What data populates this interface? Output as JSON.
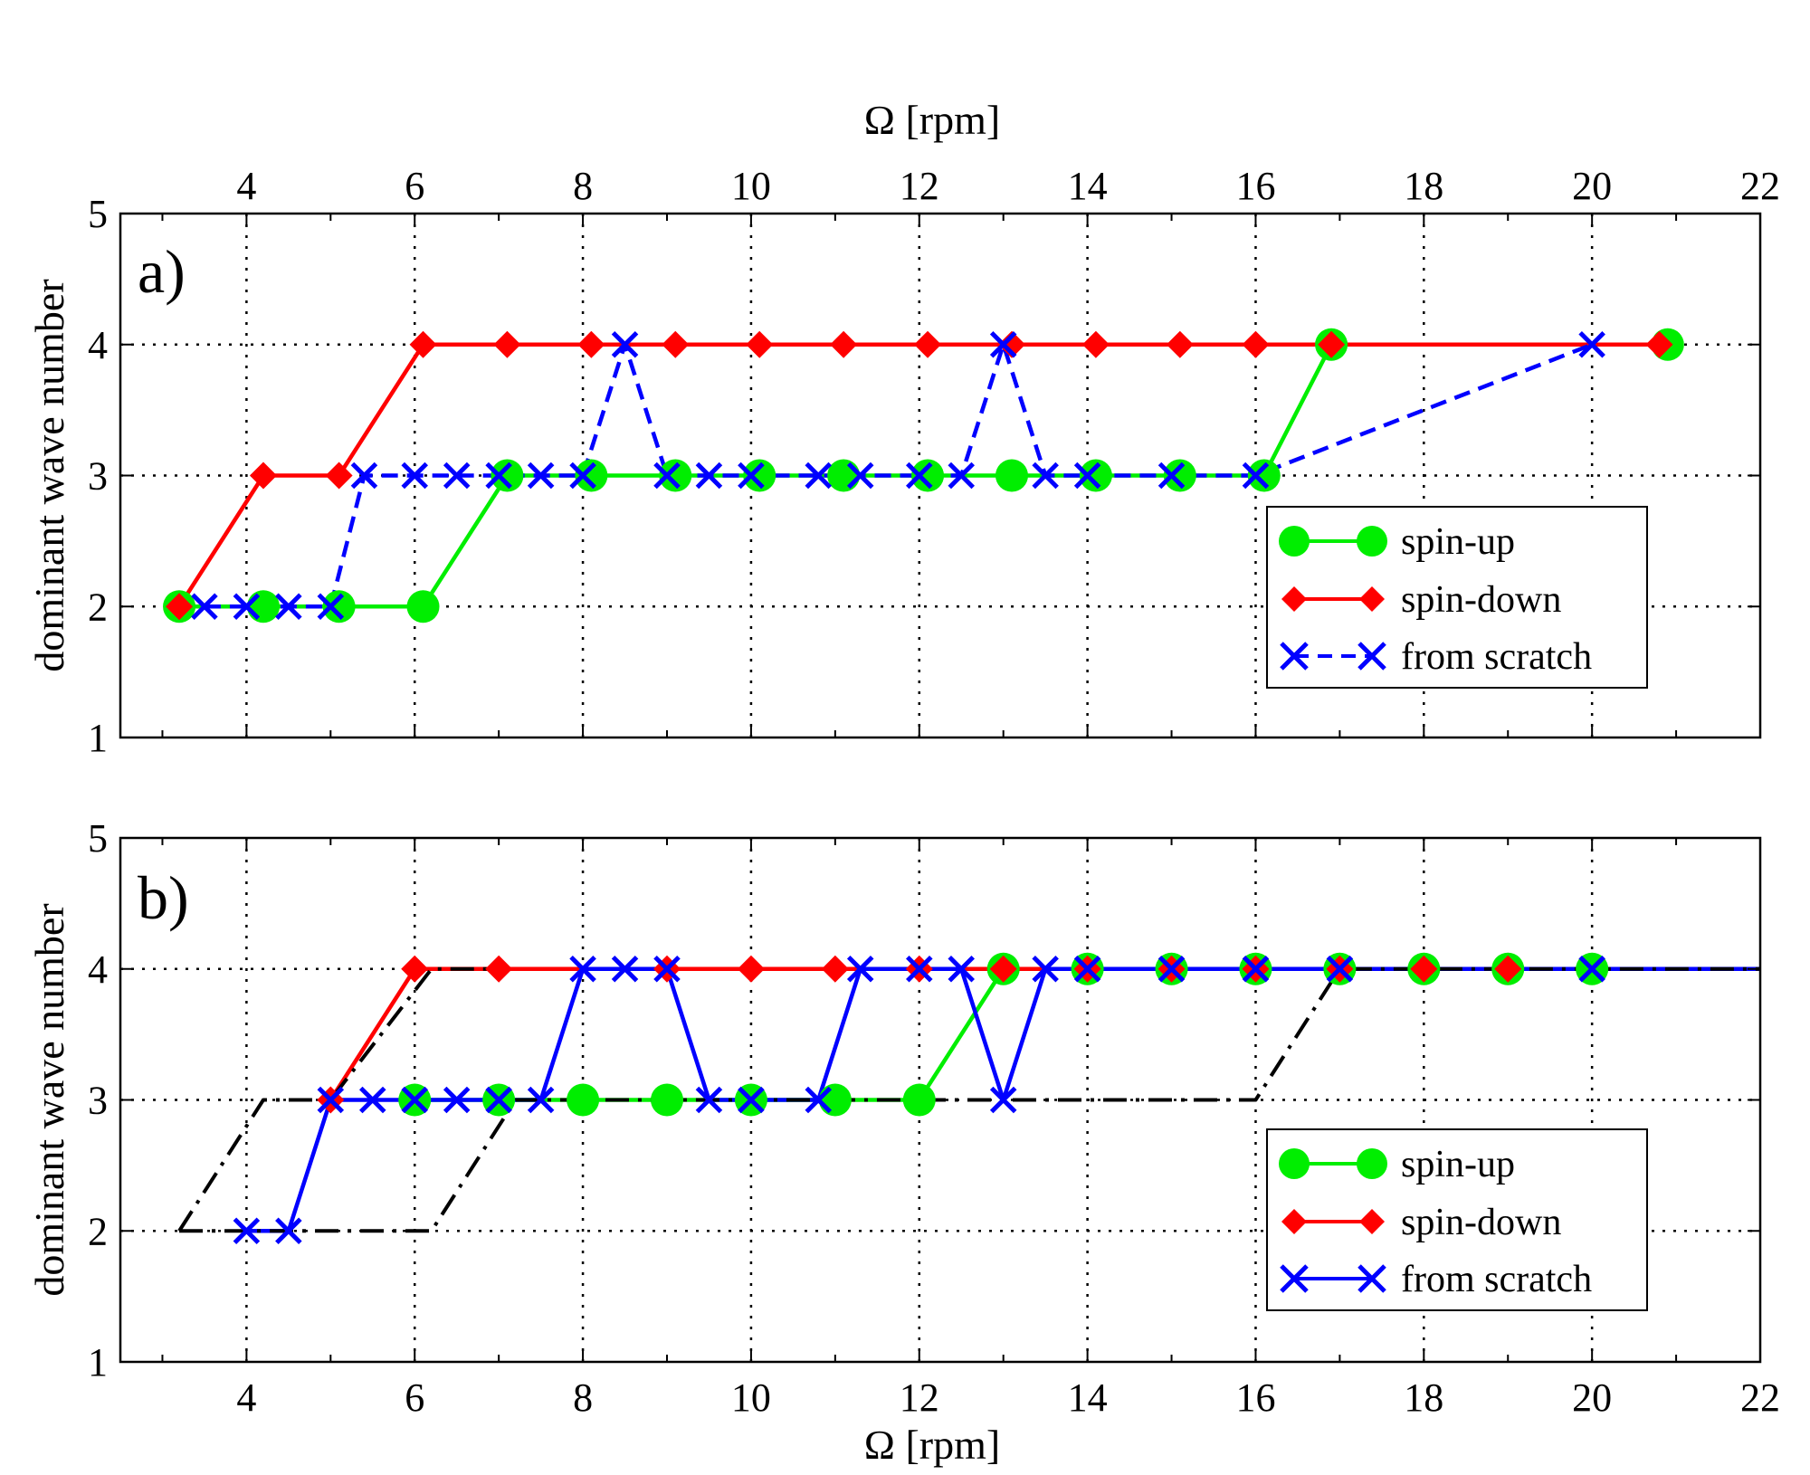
{
  "chart_data": [
    {
      "panel": "a)",
      "type": "line",
      "xlabel_top": "Ω [rpm]",
      "xlabel": "",
      "ylabel": "dominant wave number",
      "xlim": [
        2.5,
        22
      ],
      "ylim": [
        1,
        5
      ],
      "xticks": [
        4,
        6,
        8,
        10,
        12,
        14,
        16,
        18,
        20,
        22
      ],
      "yticks": [
        1,
        2,
        3,
        4,
        5
      ],
      "grid": true,
      "legend_position": "lower-right",
      "series": [
        {
          "name": "spin-up",
          "color": "#00ee00",
          "marker": "circle",
          "linestyle": "solid",
          "x": [
            3.2,
            4.2,
            5.1,
            6.1,
            7.1,
            8.1,
            9.1,
            10.1,
            11.1,
            12.1,
            13.1,
            14.1,
            15.1,
            16.1,
            16.9,
            20.9
          ],
          "y": [
            2,
            2,
            2,
            2,
            3,
            3,
            3,
            3,
            3,
            3,
            3,
            3,
            3,
            3,
            4,
            4
          ]
        },
        {
          "name": "spin-down",
          "color": "#ff0000",
          "marker": "diamond",
          "linestyle": "solid",
          "x": [
            3.2,
            4.2,
            5.1,
            6.1,
            7.1,
            8.1,
            9.1,
            10.1,
            11.1,
            12.1,
            13.1,
            14.1,
            15.1,
            16.0,
            16.9,
            20.8
          ],
          "y": [
            2,
            3,
            3,
            4,
            4,
            4,
            4,
            4,
            4,
            4,
            4,
            4,
            4,
            4,
            4,
            4
          ]
        },
        {
          "name": "from scratch",
          "color": "#0000ff",
          "marker": "x",
          "linestyle": "dashed",
          "x": [
            3.5,
            4.0,
            4.5,
            5.0,
            5.4,
            6.0,
            6.5,
            7.0,
            7.5,
            8.0,
            8.5,
            9.0,
            9.5,
            10.0,
            10.8,
            11.3,
            12.0,
            12.5,
            13.0,
            13.5,
            14.0,
            15.0,
            16.0,
            20.0
          ],
          "y": [
            2,
            2,
            2,
            2,
            3,
            3,
            3,
            3,
            3,
            3,
            4,
            3,
            3,
            3,
            3,
            3,
            3,
            3,
            4,
            3,
            3,
            3,
            3,
            4
          ]
        }
      ]
    },
    {
      "panel": "b)",
      "type": "line",
      "xlabel": "Ω [rpm]",
      "ylabel": "dominant wave number",
      "xlim": [
        2.5,
        22
      ],
      "ylim": [
        1,
        5
      ],
      "xticks": [
        4,
        6,
        8,
        10,
        12,
        14,
        16,
        18,
        20,
        22
      ],
      "yticks": [
        1,
        2,
        3,
        4,
        5
      ],
      "grid": true,
      "legend_position": "lower-right",
      "series": [
        {
          "name": "spin-up",
          "color": "#00ee00",
          "marker": "circle",
          "linestyle": "solid",
          "x": [
            6,
            7,
            8,
            9,
            10,
            11,
            12,
            13,
            14,
            15,
            16,
            17,
            18,
            19,
            20
          ],
          "y": [
            3,
            3,
            3,
            3,
            3,
            3,
            3,
            4,
            4,
            4,
            4,
            4,
            4,
            4,
            4
          ]
        },
        {
          "name": "spin-down",
          "color": "#ff0000",
          "marker": "diamond",
          "linestyle": "solid",
          "x": [
            5,
            6,
            7,
            9,
            10,
            11,
            12,
            13,
            14,
            15,
            16,
            17,
            18,
            19
          ],
          "y": [
            3,
            4,
            4,
            4,
            4,
            4,
            4,
            4,
            4,
            4,
            4,
            4,
            4,
            4
          ]
        },
        {
          "name": "from scratch",
          "color": "#0000ff",
          "marker": "x",
          "linestyle": "solid",
          "x": [
            4,
            4.5,
            5,
            5.5,
            6,
            6.5,
            7,
            7.5,
            8,
            8.5,
            9,
            9.5,
            10,
            10.8,
            11.3,
            12,
            12.5,
            13,
            13.5,
            14,
            15,
            16,
            17,
            20,
            22
          ],
          "y": [
            2,
            2,
            3,
            3,
            3,
            3,
            3,
            3,
            4,
            4,
            4,
            3,
            3,
            3,
            4,
            4,
            4,
            3,
            4,
            4,
            4,
            4,
            4,
            4,
            4
          ],
          "marked": [
            true,
            true,
            true,
            true,
            true,
            true,
            true,
            true,
            true,
            true,
            true,
            true,
            true,
            true,
            true,
            true,
            true,
            true,
            true,
            true,
            true,
            true,
            true,
            true,
            false
          ]
        },
        {
          "name": "boundary (lower)",
          "color": "#000000",
          "marker": "none",
          "linestyle": "dashdot",
          "in_legend": false,
          "x": [
            3.2,
            6.2,
            7.2,
            16.0,
            17.0,
            22.0
          ],
          "y": [
            2,
            2,
            3,
            3,
            4,
            4
          ]
        },
        {
          "name": "boundary (upper)",
          "color": "#000000",
          "marker": "none",
          "linestyle": "dashdot",
          "in_legend": false,
          "x": [
            3.2,
            4.2,
            5.0,
            6.2,
            7.0
          ],
          "y": [
            2,
            3,
            3,
            4,
            4
          ]
        }
      ]
    }
  ],
  "legend": {
    "spin_up": "spin-up",
    "spin_down": "spin-down",
    "from_scratch": "from scratch"
  }
}
